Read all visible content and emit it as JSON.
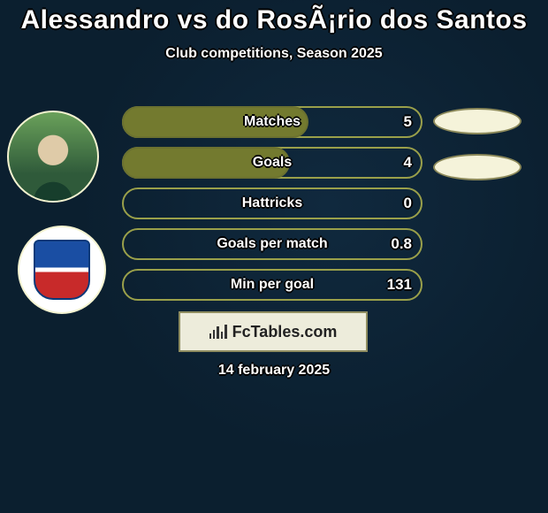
{
  "title": "Alessandro vs do RosÃ¡rio dos Santos",
  "subtitle": "Club competitions, Season 2025",
  "date_text": "14 february 2025",
  "branding": {
    "logo_text": "FcTables.com"
  },
  "colors": {
    "pill_border": "#9aa04a",
    "pill_fill": "#737a2f",
    "pill_border_dark": "#6b7130",
    "oval_bg": "#f5f3da",
    "logo_bg": "#edecdb"
  },
  "ovals": {
    "count": 2
  },
  "rows": [
    {
      "label": "Matches",
      "value": "5",
      "fill_pct": 62
    },
    {
      "label": "Goals",
      "value": "4",
      "fill_pct": 56
    },
    {
      "label": "Hattricks",
      "value": "0",
      "fill_pct": 0
    },
    {
      "label": "Goals per match",
      "value": "0.8",
      "fill_pct": 0
    },
    {
      "label": "Min per goal",
      "value": "131",
      "fill_pct": 0
    }
  ]
}
